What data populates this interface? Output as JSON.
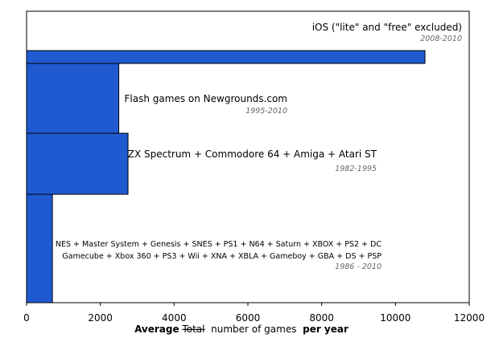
{
  "chart_data": {
    "type": "bar",
    "orientation": "horizontal",
    "categories": [
      {
        "lines": [
          "iOS (\"lite\" and \"free\" excluded)"
        ],
        "period": "2008-2010",
        "value": 10800
      },
      {
        "lines": [
          "Flash games on Newgrounds.com"
        ],
        "period": "1995-2010",
        "value": 2500
      },
      {
        "lines": [
          "ZX Spectrum + Commodore 64 + Amiga + Atari ST"
        ],
        "period": "1982-1995",
        "value": 2750
      },
      {
        "lines": [
          "NES + Master System + Genesis + SNES + PS1 + N64 + Saturn + XBOX + PS2 + DC",
          "Gamecube + Xbox 360 + PS3 + Wii + XNA + XBLA + Gameboy + GBA + DS + PSP"
        ],
        "period": "1986 - 2010",
        "value": 700
      }
    ],
    "xlim": [
      0,
      12000
    ],
    "xticks": [
      0,
      2000,
      4000,
      6000,
      8000,
      10000,
      12000
    ],
    "xlabel": {
      "part1": "Average",
      "part2": "Total",
      "part3": " number of games ",
      "part4": "per year"
    },
    "bar_color": "#1f5ad0",
    "bar_stroke": "#000000",
    "grid": false
  }
}
